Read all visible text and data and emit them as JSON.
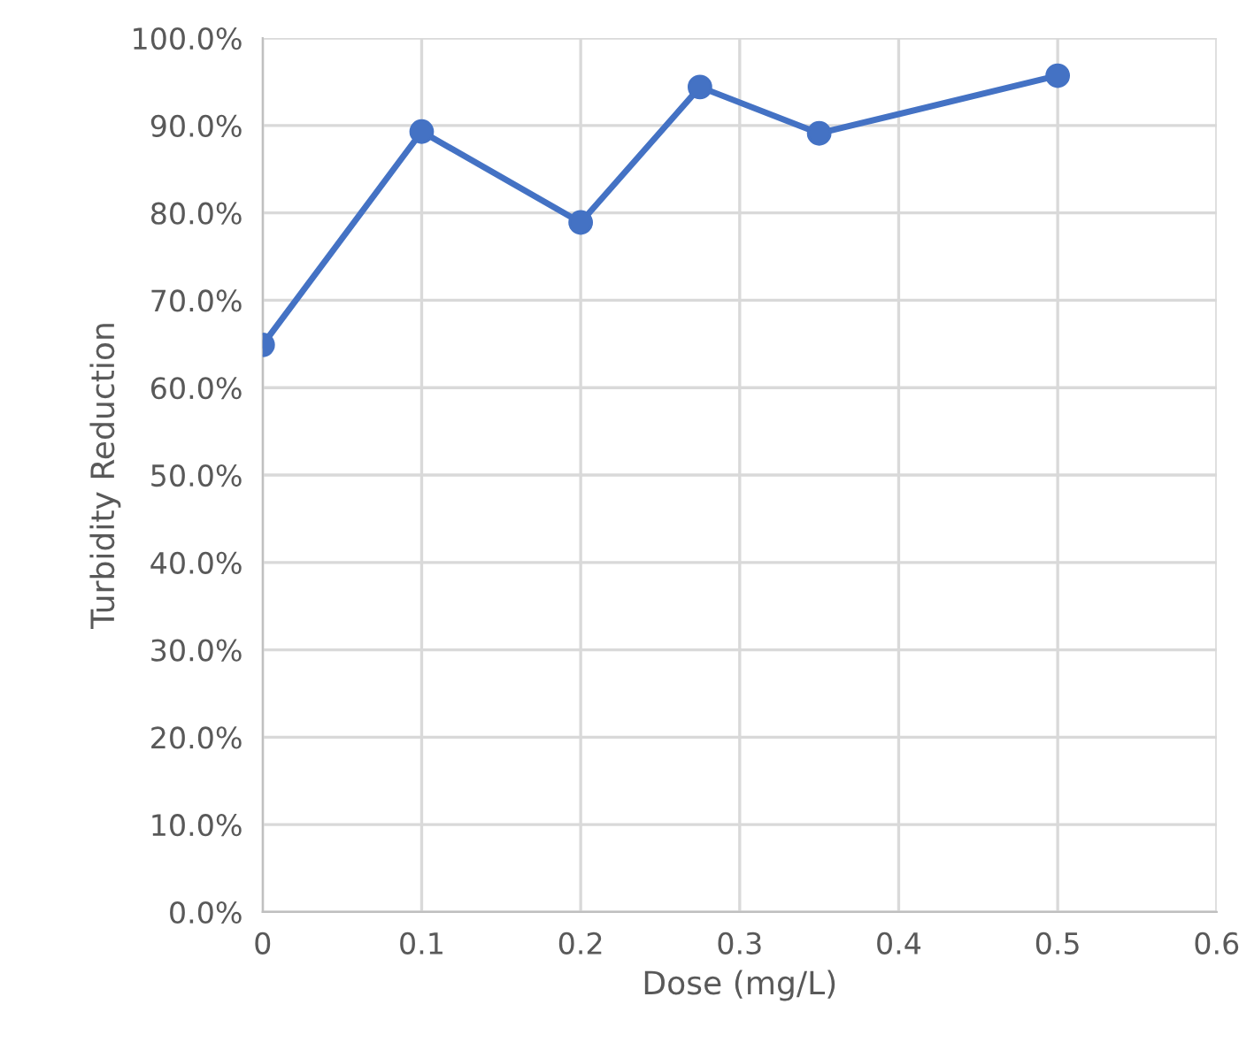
{
  "chart_data": {
    "type": "line",
    "xlabel": "Dose (mg/L)",
    "ylabel": "Turbidity Reduction",
    "series": [
      {
        "color": "#4472c4",
        "x": [
          0,
          0.1,
          0.2,
          0.275,
          0.35,
          0.5
        ],
        "values": [
          64.9,
          89.3,
          78.9,
          94.4,
          89.1,
          95.7
        ]
      }
    ],
    "xlim": [
      0,
      0.6
    ],
    "xticks": [
      0,
      0.1,
      0.2,
      0.3,
      0.4,
      0.5,
      0.6
    ],
    "ylim": [
      0,
      100
    ],
    "yticks": [
      {
        "value": 0,
        "label": "0.0%"
      },
      {
        "value": 10,
        "label": "10.0%"
      },
      {
        "value": 20,
        "label": "20.0%"
      },
      {
        "value": 30,
        "label": "30.0%"
      },
      {
        "value": 40,
        "label": "40.0%"
      },
      {
        "value": 50,
        "label": "50.0%"
      },
      {
        "value": 60,
        "label": "60.0%"
      },
      {
        "value": 70,
        "label": "70.0%"
      },
      {
        "value": 80,
        "label": "80.0%"
      },
      {
        "value": 90,
        "label": "90.0%"
      },
      {
        "value": 100,
        "label": "100.0%"
      }
    ],
    "grid": true,
    "marker": "circle",
    "line_style": "solid"
  }
}
